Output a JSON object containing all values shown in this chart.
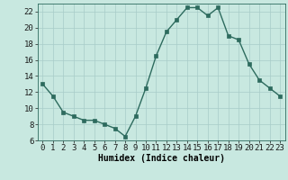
{
  "x": [
    0,
    1,
    2,
    3,
    4,
    5,
    6,
    7,
    8,
    9,
    10,
    11,
    12,
    13,
    14,
    15,
    16,
    17,
    18,
    19,
    20,
    21,
    22,
    23
  ],
  "y": [
    13,
    11.5,
    9.5,
    9,
    8.5,
    8.5,
    8,
    7.5,
    6.5,
    9,
    12.5,
    16.5,
    19.5,
    21,
    22.5,
    22.5,
    21.5,
    22.5,
    19,
    18.5,
    15.5,
    13.5,
    12.5,
    11.5
  ],
  "line_color": "#2d6b5e",
  "bg_color": "#c8e8e0",
  "grid_color": "#a8ccc8",
  "xlabel": "Humidex (Indice chaleur)",
  "ylim": [
    6,
    23
  ],
  "xlim": [
    -0.5,
    23.5
  ],
  "yticks": [
    6,
    8,
    10,
    12,
    14,
    16,
    18,
    20,
    22
  ],
  "xticks": [
    0,
    1,
    2,
    3,
    4,
    5,
    6,
    7,
    8,
    9,
    10,
    11,
    12,
    13,
    14,
    15,
    16,
    17,
    18,
    19,
    20,
    21,
    22,
    23
  ],
  "xlabel_fontsize": 7,
  "tick_fontsize": 6.5,
  "marker_size": 2.5,
  "line_width": 1.0
}
